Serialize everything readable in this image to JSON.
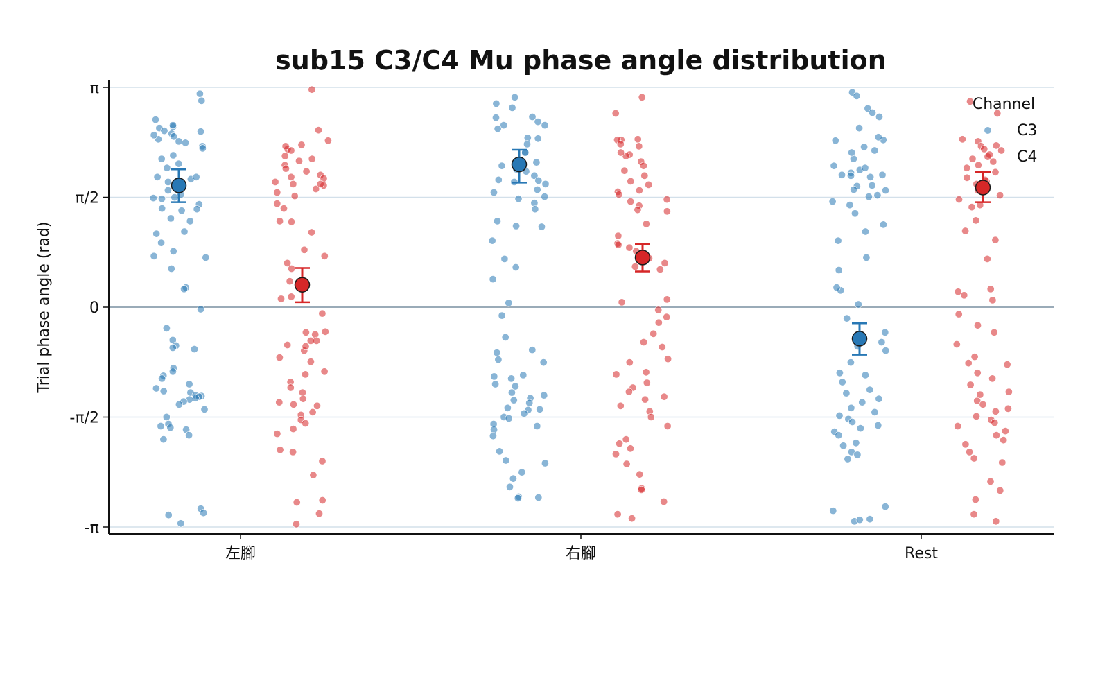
{
  "chart_data": {
    "type": "scatter",
    "title": "sub15 C3/C4 Mu phase angle distribution",
    "xlabel": "",
    "ylabel": "Trial phase angle (rad)",
    "categories": [
      "左腳",
      "右腳",
      "Rest"
    ],
    "ylim": [
      -3.1416,
      3.1416
    ],
    "yticks": [
      {
        "value": 3.1416,
        "label": "π"
      },
      {
        "value": 1.5708,
        "label": "π/2"
      },
      {
        "value": 0,
        "label": "0"
      },
      {
        "value": -1.5708,
        "label": "-π/2"
      },
      {
        "value": -3.1416,
        "label": "-π"
      }
    ],
    "grid": "horizontal",
    "legend": {
      "title": "Channel",
      "position": "top-right"
    },
    "colors": {
      "C3": "#2878b5",
      "C4": "#d62728",
      "grid": "#d3e0ea",
      "zero_line": "#9aabb8"
    },
    "series": [
      {
        "name": "C3",
        "means": [
          1.74,
          2.04,
          -0.45
        ],
        "ci_low": [
          1.5,
          1.78,
          -0.68
        ],
        "ci_high": [
          1.97,
          2.25,
          -0.23
        ],
        "trials": [
          [
            3.05,
            2.95,
            2.68,
            2.58,
            2.51,
            2.56,
            2.48,
            2.37,
            2.35,
            2.52,
            2.4,
            2.3,
            2.17,
            2.12,
            2.05,
            1.99,
            1.86,
            1.83,
            1.79,
            1.67,
            1.56,
            1.47,
            1.41,
            1.4,
            1.57,
            1.55,
            1.38,
            1.27,
            1.23,
            1.08,
            1.05,
            0.92,
            0.8,
            0.73,
            0.71,
            0.55,
            0.28,
            0.26,
            -0.03,
            -0.3,
            -0.47,
            -0.55,
            -0.58,
            -0.6,
            -0.87,
            -0.92,
            -0.98,
            -1.02,
            -1.1,
            -1.16,
            -1.2,
            -1.22,
            -1.26,
            -1.27,
            -1.28,
            -1.3,
            -1.32,
            -1.35,
            -1.39,
            -1.46,
            -1.57,
            -1.67,
            -1.7,
            -1.72,
            -1.75,
            -1.83,
            -1.89,
            -2.88,
            -2.94,
            -2.97,
            -3.09,
            2.6,
            2.46,
            2.27,
            2.44,
            1.86,
            1.61
          ],
          [
            3.0,
            2.91,
            2.72,
            2.65,
            2.6,
            2.6,
            2.55,
            2.42,
            2.33,
            2.21,
            2.07,
            2.02,
            1.88,
            1.82,
            1.76,
            1.64,
            1.58,
            1.55,
            1.49,
            1.4,
            1.23,
            1.16,
            0.95,
            0.69,
            0.57,
            0.4,
            0.06,
            -0.12,
            -0.43,
            -0.61,
            -0.65,
            -0.75,
            -0.79,
            -0.97,
            -0.99,
            -1.02,
            -1.1,
            -1.13,
            -1.22,
            -1.26,
            -1.3,
            -1.33,
            -1.37,
            -1.44,
            -1.46,
            -1.47,
            -1.52,
            -1.57,
            -1.59,
            -1.67,
            -1.7,
            -1.75,
            -1.84,
            -2.06,
            -2.19,
            -2.23,
            -2.36,
            -2.45,
            -2.57,
            -2.71,
            -2.72,
            -2.73,
            2.85,
            2.71,
            2.41,
            2.21,
            1.97,
            1.81,
            1.94,
            1.79,
            1.15,
            1.68
          ],
          [
            3.07,
            3.02,
            2.84,
            2.78,
            2.72,
            2.56,
            2.39,
            2.29,
            2.24,
            2.12,
            2.02,
            1.89,
            1.96,
            1.99,
            1.92,
            1.86,
            1.74,
            1.73,
            1.68,
            1.6,
            1.58,
            1.51,
            1.46,
            1.34,
            1.18,
            1.08,
            0.95,
            0.71,
            0.53,
            0.24,
            0.04,
            -0.16,
            -0.36,
            -0.5,
            -0.56,
            -0.62,
            -0.79,
            -0.94,
            -0.97,
            -1.07,
            -1.18,
            -1.23,
            -1.31,
            -1.36,
            -1.44,
            -1.5,
            -1.55,
            -1.6,
            -1.64,
            -1.69,
            -1.73,
            -1.78,
            -1.83,
            -1.94,
            -1.98,
            -2.07,
            -2.11,
            -2.17,
            -2.85,
            -2.91,
            -3.03,
            -3.06,
            -3.04,
            2.43,
            2.38,
            2.21,
            1.89,
            1.88,
            1.67,
            0.28
          ]
        ]
      },
      {
        "name": "C4",
        "means": [
          0.32,
          0.71,
          1.71
        ],
        "ci_low": [
          0.07,
          0.51,
          1.5
        ],
        "ci_high": [
          0.56,
          0.9,
          1.93
        ],
        "trials": [
          [
            3.11,
            2.53,
            2.38,
            2.32,
            2.26,
            2.24,
            2.16,
            2.12,
            2.09,
            2.03,
            1.94,
            1.89,
            1.84,
            1.76,
            1.74,
            1.69,
            1.59,
            1.48,
            1.41,
            1.23,
            1.07,
            0.82,
            0.73,
            0.63,
            0.55,
            0.37,
            0.12,
            -0.09,
            -0.36,
            -0.39,
            -0.48,
            -0.54,
            -0.62,
            -0.72,
            -0.78,
            -0.92,
            -0.96,
            -1.07,
            -1.15,
            -1.22,
            -1.31,
            -1.36,
            -1.39,
            -1.41,
            -1.5,
            -1.54,
            -1.61,
            -1.66,
            -1.74,
            -1.81,
            -2.04,
            -2.07,
            -2.2,
            -2.4,
            -2.76,
            -2.79,
            -2.95,
            -3.1,
            1.64,
            1.76,
            1.86,
            1.98,
            2.3,
            1.79,
            1.22,
            0.15,
            -0.35,
            -0.48,
            -0.56
          ],
          [
            3.0,
            2.77,
            2.4,
            2.39,
            2.3,
            2.18,
            2.16,
            2.08,
            2.02,
            1.95,
            1.88,
            1.75,
            1.67,
            1.65,
            1.54,
            1.45,
            1.39,
            1.37,
            1.19,
            1.02,
            0.91,
            0.85,
            0.8,
            0.7,
            0.63,
            0.54,
            0.07,
            0.11,
            -0.04,
            -0.14,
            -0.22,
            -0.38,
            -0.5,
            -0.57,
            -0.74,
            -0.79,
            -0.93,
            -0.96,
            -1.08,
            -1.15,
            -1.21,
            -1.28,
            -1.32,
            -1.41,
            -1.49,
            -1.57,
            -1.7,
            -1.89,
            -1.95,
            -2.02,
            -2.1,
            -2.24,
            -2.39,
            -2.59,
            -2.61,
            -2.78,
            -2.96,
            -3.02,
            2.39,
            2.33,
            2.21,
            1.8,
            1.61,
            1.51,
            0.89,
            0.58
          ],
          [
            2.94,
            2.77,
            2.37,
            2.3,
            2.24,
            2.18,
            2.12,
            2.08,
            2.03,
            1.99,
            1.93,
            1.85,
            1.8,
            1.76,
            1.67,
            1.6,
            1.54,
            1.46,
            1.24,
            1.09,
            0.96,
            0.26,
            0.17,
            0.1,
            -0.1,
            -0.26,
            -0.36,
            -0.53,
            -0.71,
            -0.8,
            -0.82,
            -0.94,
            -1.02,
            -1.11,
            -1.21,
            -1.25,
            -1.34,
            -1.39,
            -1.45,
            -1.49,
            -1.56,
            -1.61,
            -1.65,
            -1.7,
            -1.77,
            -1.83,
            -1.9,
            -1.96,
            -2.07,
            -2.16,
            -2.22,
            -2.49,
            -2.62,
            -2.75,
            -2.96,
            -3.06,
            2.4,
            2.31,
            2.26,
            1.82,
            1.43,
            0.69,
            0.22
          ]
        ]
      }
    ]
  }
}
